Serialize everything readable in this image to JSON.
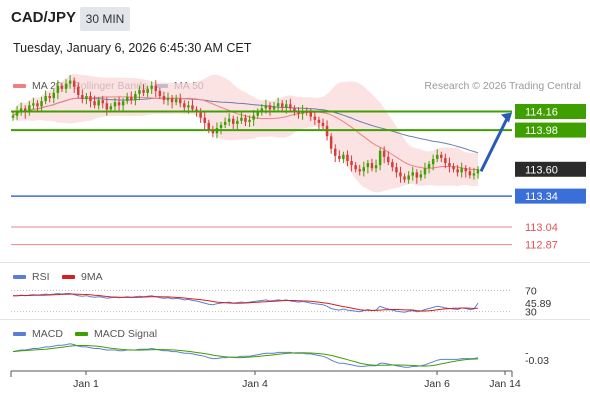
{
  "header": {
    "pair": "CAD/JPY",
    "timeframe": "30 MIN",
    "datetime": "Tuesday, January 6, 2026 6:45:30 AM CET"
  },
  "legend": {
    "ma20": "MA 20 + Bollinger Bands",
    "ma50": "MA 50",
    "credit": "Research © 2026 Trading Central"
  },
  "rsi_panel": {
    "label": "RSI",
    "ma_label": "9MA",
    "level_70": "70",
    "level_30": "30",
    "value": "45.89"
  },
  "macd_panel": {
    "label": "MACD",
    "signal_label": "MACD Signal",
    "zero_label": "-",
    "value": "-0.03"
  },
  "colors": {
    "green": "#3f9f00",
    "blue": "#3a6fd8",
    "red": "#e05555",
    "dark": "#2b2b2b",
    "arrow": "#2a5ab8",
    "ma20": "#f08080",
    "ma50": "#3a5a9a"
  },
  "chart_data": {
    "type": "candlestick",
    "y_range": [
      112.74,
      114.32
    ],
    "levels": [
      {
        "price": 114.16,
        "label": "114.16",
        "kind": "resistance",
        "color": "#3f9f00"
      },
      {
        "price": 113.98,
        "label": "113.98",
        "kind": "resistance",
        "color": "#3f9f00"
      },
      {
        "price": 113.6,
        "label": "113.60",
        "kind": "last",
        "color": "#2b2b2b"
      },
      {
        "price": 113.34,
        "label": "113.34",
        "kind": "pivot",
        "color": "#3a6fd8"
      },
      {
        "price": 113.04,
        "label": "113.04",
        "kind": "support",
        "color": "#e05555"
      },
      {
        "price": 112.87,
        "label": "112.87",
        "kind": "support",
        "color": "#e05555"
      }
    ],
    "x_ticks": [
      "Jan 1",
      "Jan 4",
      "Jan 6",
      "Jan 14"
    ],
    "close": [
      114.12,
      114.17,
      114.19,
      114.15,
      114.22,
      114.24,
      114.21,
      114.26,
      114.31,
      114.29,
      114.34,
      114.41,
      114.38,
      114.43,
      114.46,
      114.4,
      114.32,
      114.28,
      114.31,
      114.26,
      114.22,
      114.27,
      114.24,
      114.18,
      114.21,
      114.25,
      114.22,
      114.26,
      114.3,
      114.27,
      114.33,
      114.37,
      114.34,
      114.38,
      114.41,
      114.36,
      114.31,
      114.27,
      114.29,
      114.25,
      114.28,
      114.24,
      114.2,
      114.22,
      114.18,
      114.15,
      114.1,
      114.05,
      113.98,
      113.95,
      114.0,
      114.03,
      114.06,
      114.09,
      114.04,
      114.07,
      114.1,
      114.06,
      114.08,
      114.12,
      114.16,
      114.19,
      114.22,
      114.18,
      114.21,
      114.24,
      114.2,
      114.23,
      114.19,
      114.16,
      114.14,
      114.17,
      114.15,
      114.11,
      114.08,
      114.05,
      114.02,
      113.92,
      113.8,
      113.73,
      113.7,
      113.74,
      113.68,
      113.64,
      113.6,
      113.58,
      113.62,
      113.66,
      113.61,
      113.64,
      113.78,
      113.72,
      113.67,
      113.62,
      113.57,
      113.53,
      113.5,
      113.54,
      113.57,
      113.52,
      113.55,
      113.61,
      113.65,
      113.7,
      113.74,
      113.71,
      113.66,
      113.63,
      113.6,
      113.57,
      113.61,
      113.58,
      113.54,
      113.56,
      113.6
    ],
    "rsi": [
      60,
      60,
      61,
      60,
      61,
      62,
      61,
      62,
      63,
      62,
      63,
      64,
      63,
      64,
      64,
      62,
      60,
      59,
      60,
      58,
      57,
      58,
      57,
      55,
      56,
      57,
      56,
      57,
      58,
      57,
      58,
      59,
      58,
      59,
      60,
      58,
      56,
      55,
      56,
      54,
      55,
      54,
      52,
      53,
      51,
      50,
      48,
      46,
      44,
      43,
      45,
      46,
      47,
      48,
      46,
      47,
      48,
      47,
      48,
      49,
      50,
      51,
      52,
      50,
      51,
      52,
      51,
      52,
      50,
      49,
      48,
      49,
      48,
      46,
      45,
      44,
      43,
      40,
      36,
      34,
      33,
      35,
      33,
      32,
      31,
      30,
      32,
      34,
      32,
      33,
      40,
      37,
      35,
      33,
      31,
      30,
      29,
      31,
      32,
      30,
      31,
      34,
      36,
      38,
      40,
      39,
      37,
      36,
      35,
      34,
      37,
      36,
      34,
      35,
      46
    ],
    "macd": [
      0.05,
      0.06,
      0.07,
      0.07,
      0.08,
      0.09,
      0.09,
      0.1,
      0.11,
      0.11,
      0.12,
      0.13,
      0.13,
      0.14,
      0.15,
      0.14,
      0.12,
      0.11,
      0.11,
      0.1,
      0.09,
      0.09,
      0.08,
      0.07,
      0.07,
      0.07,
      0.06,
      0.06,
      0.07,
      0.07,
      0.07,
      0.08,
      0.08,
      0.08,
      0.09,
      0.08,
      0.07,
      0.06,
      0.06,
      0.05,
      0.05,
      0.04,
      0.03,
      0.03,
      0.02,
      0.01,
      0.0,
      -0.01,
      -0.03,
      -0.04,
      -0.04,
      -0.03,
      -0.03,
      -0.02,
      -0.02,
      -0.02,
      -0.01,
      -0.01,
      -0.01,
      0.0,
      0.01,
      0.02,
      0.03,
      0.03,
      0.03,
      0.04,
      0.04,
      0.04,
      0.04,
      0.03,
      0.03,
      0.03,
      0.02,
      0.02,
      0.01,
      0.0,
      -0.01,
      -0.03,
      -0.06,
      -0.08,
      -0.1,
      -0.1,
      -0.11,
      -0.12,
      -0.13,
      -0.14,
      -0.14,
      -0.13,
      -0.13,
      -0.13,
      -0.1,
      -0.1,
      -0.11,
      -0.12,
      -0.13,
      -0.14,
      -0.15,
      -0.15,
      -0.14,
      -0.14,
      -0.13,
      -0.12,
      -0.1,
      -0.08,
      -0.06,
      -0.05,
      -0.05,
      -0.05,
      -0.05,
      -0.05,
      -0.04,
      -0.04,
      -0.04,
      -0.04,
      -0.03
    ]
  }
}
